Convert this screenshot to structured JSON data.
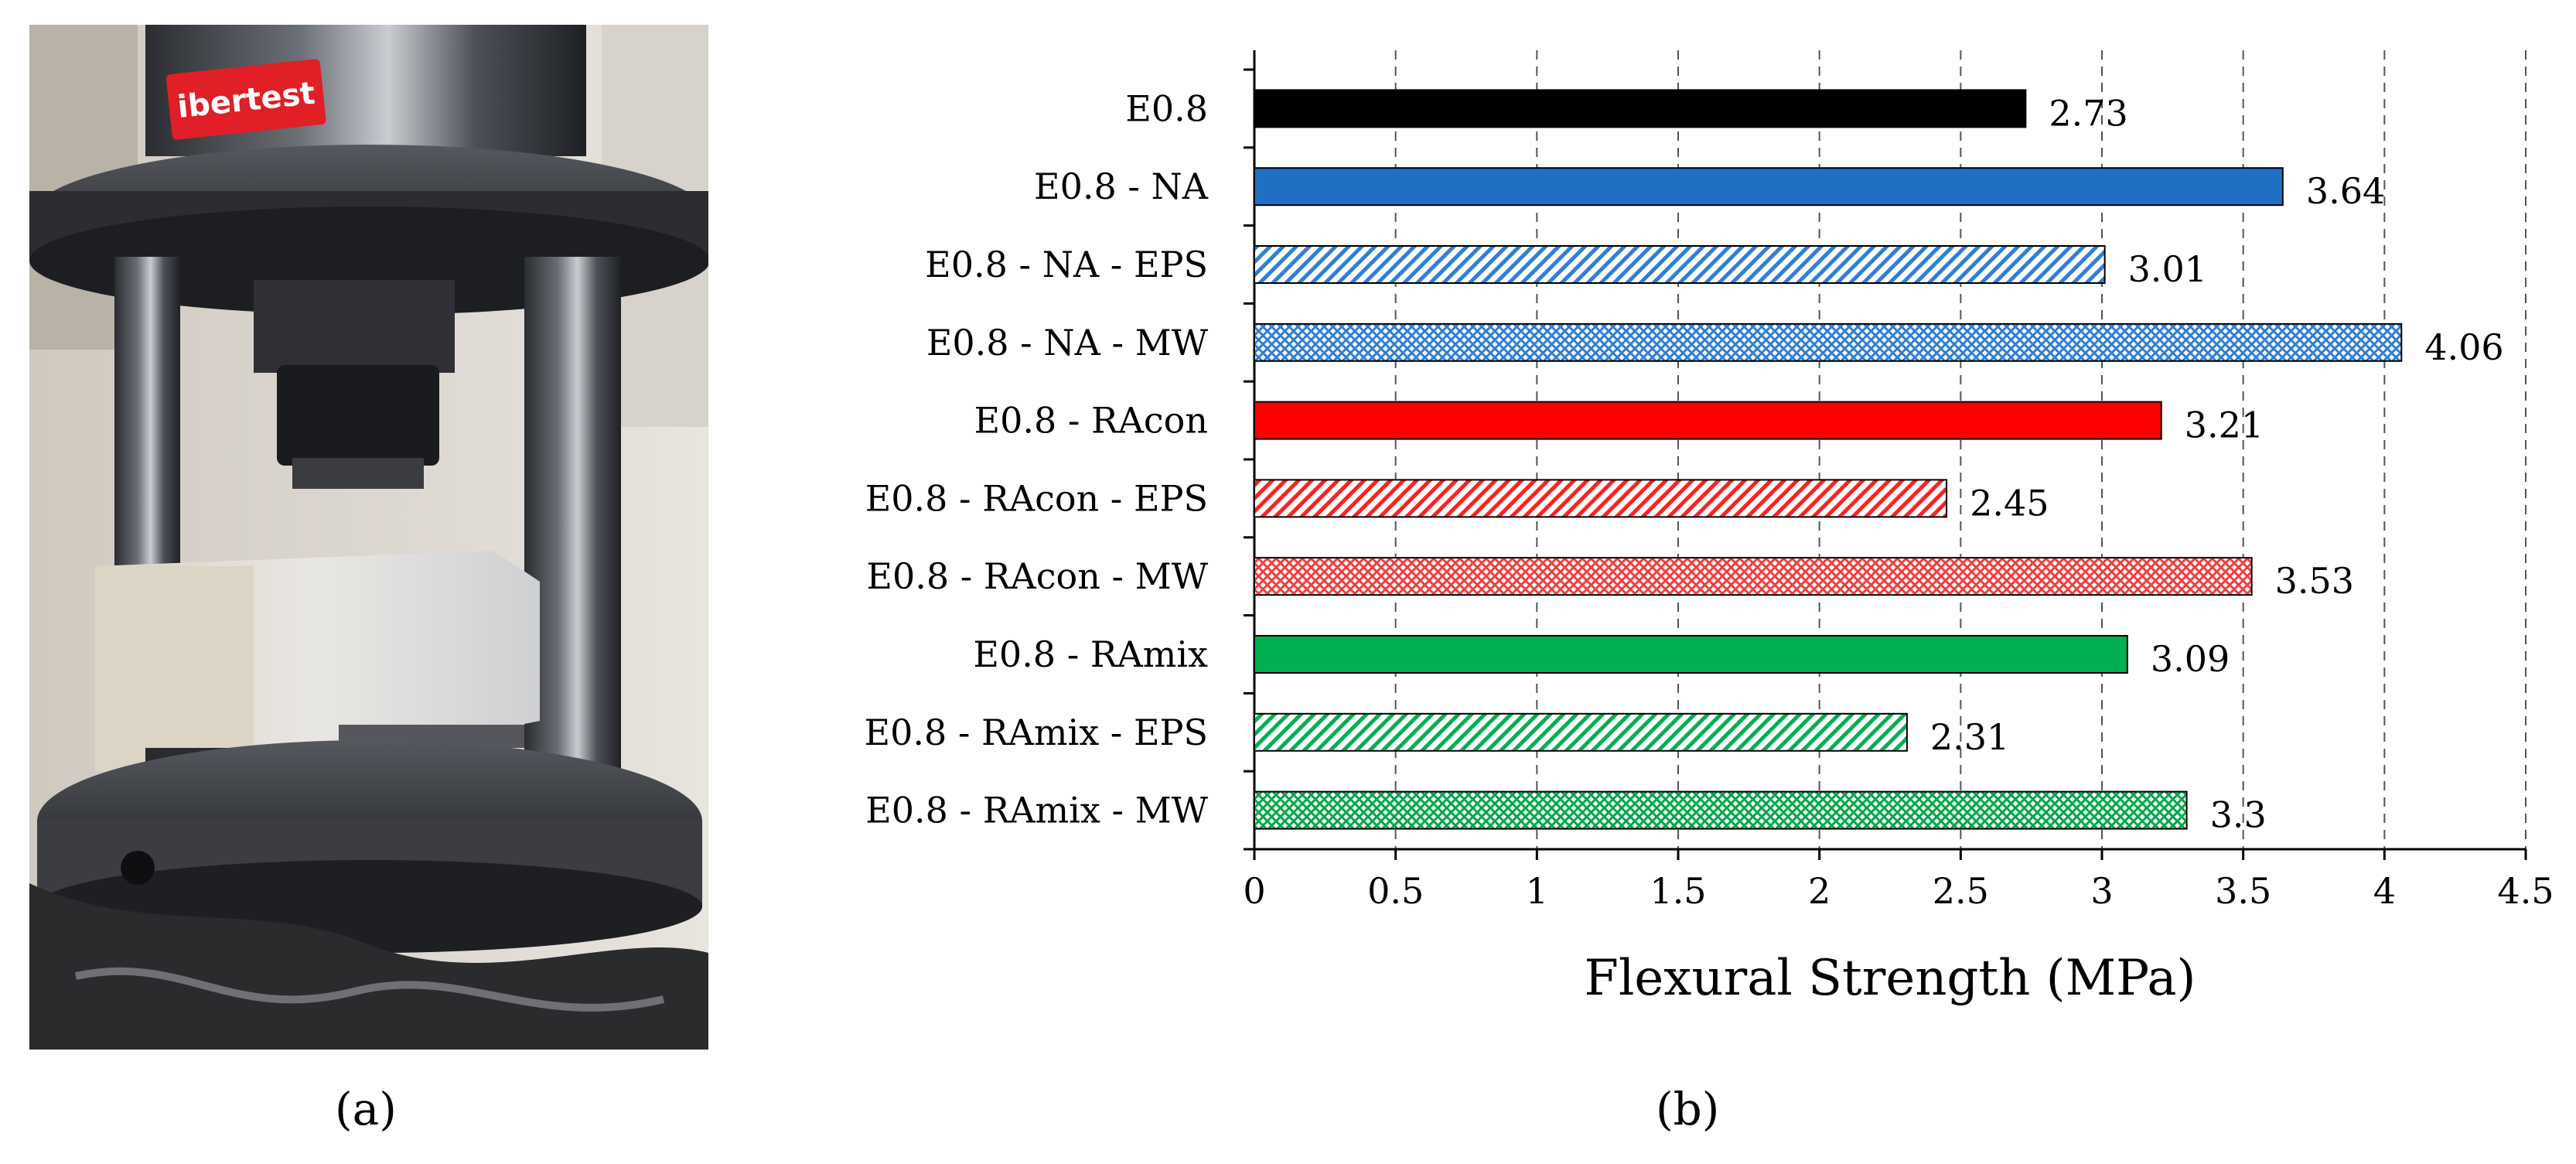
{
  "panel_a": {
    "caption": "(a)",
    "machine_brand": "ibertest"
  },
  "panel_b": {
    "caption": "(b)"
  },
  "chart_data": {
    "type": "bar",
    "orientation": "horizontal",
    "title": "",
    "xlabel": "Flexural Strength (MPa)",
    "ylabel": "",
    "xlim": [
      0,
      4.5
    ],
    "x_ticks": [
      0,
      0.5,
      1,
      1.5,
      2,
      2.5,
      3,
      3.5,
      4,
      4.5
    ],
    "x_tick_labels": [
      "0",
      "0.5",
      "1",
      "1.5",
      "2",
      "2.5",
      "3",
      "3.5",
      "4",
      "4.5"
    ],
    "grid": "vertical dashed",
    "categories": [
      "E0.8",
      "E0.8 - NA",
      "E0.8 - NA - EPS",
      "E0.8 - NA - MW",
      "E0.8 - RAcon",
      "E0.8 - RAcon - EPS",
      "E0.8 - RAcon - MW",
      "E0.8 - RAmix",
      "E0.8 - RAmix - EPS",
      "E0.8 - RAmix - MW"
    ],
    "values": [
      2.73,
      3.64,
      3.01,
      4.06,
      3.21,
      2.45,
      3.53,
      3.09,
      2.31,
      3.3
    ],
    "value_labels": [
      "2.73",
      "3.64",
      "3.01",
      "4.06",
      "3.21",
      "2.45",
      "3.53",
      "3.09",
      "2.31",
      "3.3"
    ],
    "fills": [
      "solid",
      "solid",
      "diagonal-hatch",
      "cross-hatch",
      "solid",
      "diagonal-hatch",
      "cross-hatch",
      "solid",
      "diagonal-hatch",
      "cross-hatch"
    ],
    "colors": [
      "#000000",
      "#1f6fc5",
      "#2f7fd6",
      "#2f7fd6",
      "#ff0000",
      "#ff2020",
      "#f04040",
      "#00b050",
      "#00b050",
      "#00a84a"
    ]
  }
}
